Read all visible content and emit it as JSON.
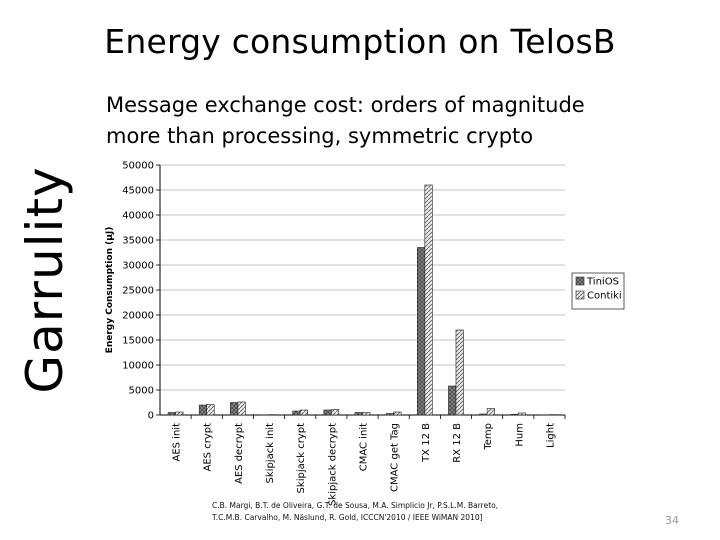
{
  "slide": {
    "title": "Energy consumption on TelosB",
    "subtitle_line1": "Message exchange cost: orders of magnitude",
    "subtitle_line2": "more than processing, symmetric crypto",
    "side_label": "Garrulity",
    "citation_line1": "C.B. Margi, B.T. de Oliveira, G.T. de Sousa, M.A. Simplicio Jr, P.S.L.M. Barreto,",
    "citation_line2": "T.C.M.B. Carvalho, M. Näslund, R. Gold, ICCCN'2010 / IEEE WiMAN 2010]",
    "page_number": "34"
  },
  "chart_data": {
    "type": "bar",
    "ylabel": "Energy Consumption (µJ)",
    "ylim": [
      0,
      50000
    ],
    "yticks": [
      "0",
      "5000",
      "10000",
      "15000",
      "20000",
      "25000",
      "30000",
      "35000",
      "40000",
      "45000",
      "50000"
    ],
    "grid": "horizontal",
    "legend_position": "right",
    "categories": [
      "AES init",
      "AES crypt",
      "AES decrypt",
      "Skipjack init",
      "Skipjack crypt",
      "Skipjack decrypt",
      "CMAC init",
      "CMAC get Tag",
      "TX 12 B",
      "RX 12 B",
      "Temp",
      "Hum",
      "Light"
    ],
    "series": [
      {
        "name": "TiniOS",
        "color": "#8c8c8c",
        "values": [
          500,
          2000,
          2500,
          50,
          800,
          1000,
          500,
          300,
          33500,
          5800,
          200,
          150,
          50
        ]
      },
      {
        "name": "Contiki",
        "color": "#d4d4d4",
        "values": [
          600,
          2100,
          2600,
          80,
          1000,
          1100,
          500,
          600,
          46000,
          17000,
          1300,
          400,
          80
        ]
      }
    ]
  }
}
